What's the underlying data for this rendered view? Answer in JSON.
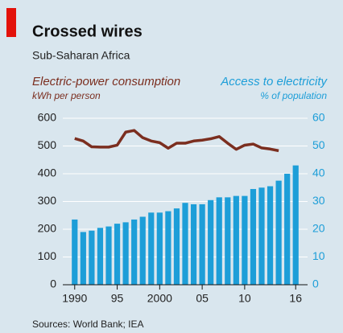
{
  "chart_data": {
    "type": "bar_line",
    "title": "Crossed wires",
    "subtitle": "Sub-Saharan Africa",
    "source": "Sources: World Bank; IEA",
    "x": [
      1990,
      1991,
      1992,
      1993,
      1994,
      1995,
      1996,
      1997,
      1998,
      1999,
      2000,
      2001,
      2002,
      2003,
      2004,
      2005,
      2006,
      2007,
      2008,
      2009,
      2010,
      2011,
      2012,
      2013,
      2014,
      2015,
      2016
    ],
    "xlim": [
      1988.6,
      2017.4
    ],
    "xticks": [
      1990,
      {
        "value": 1995,
        "label": "95"
      },
      2000,
      {
        "value": 2005,
        "label": "05"
      },
      {
        "value": 2010,
        "label": "10"
      },
      {
        "value": 2016,
        "label": "16"
      }
    ],
    "ylim": [
      0,
      600
    ],
    "yticks": [
      0,
      100,
      200,
      300,
      400,
      500,
      600
    ],
    "y2lim": [
      0,
      60
    ],
    "y2ticks": [
      0,
      10,
      20,
      30,
      40,
      50,
      60
    ],
    "grid": true,
    "series": [
      {
        "name": "Electric-power consumption",
        "unit": "kWh per person",
        "type": "line",
        "color": "#7b2e1f",
        "axis": "y",
        "values": [
          527,
          518,
          497,
          496,
          496,
          503,
          550,
          556,
          530,
          518,
          512,
          492,
          510,
          510,
          518,
          521,
          526,
          534,
          510,
          488,
          503,
          507,
          493,
          489,
          483,
          null,
          null
        ]
      },
      {
        "name": "Access to electricity",
        "unit": "% of population",
        "type": "bar",
        "color": "#1d9ed8",
        "axis": "y2",
        "values": [
          23.5,
          19,
          19.5,
          20.5,
          21,
          22,
          22.5,
          23.5,
          24.5,
          26,
          26,
          26.5,
          27.5,
          29.5,
          29,
          29,
          30.5,
          31.5,
          31.5,
          32,
          32,
          34.5,
          35,
          35.5,
          37.5,
          40,
          43
        ]
      }
    ]
  }
}
